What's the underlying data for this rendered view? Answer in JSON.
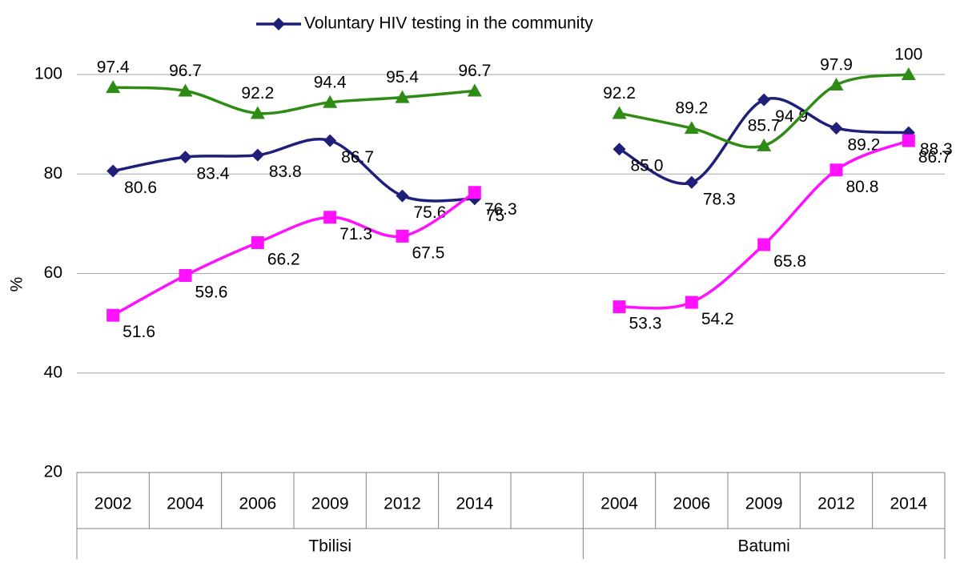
{
  "chart_data": {
    "type": "line",
    "categories": [
      "2002",
      "2004",
      "2006",
      "2009",
      "2012",
      "2014",
      null,
      "2004",
      "2006",
      "2009",
      "2012",
      "2014"
    ],
    "group_labels": [
      "Tbilisi",
      "Batumi"
    ],
    "y_label": "%",
    "ylim": [
      20,
      100
    ],
    "yticks": [
      20,
      40,
      60,
      80,
      100
    ],
    "grid": true,
    "smooth": true,
    "legend": "top",
    "series": [
      {
        "name": "Voluntary HIV testing in the community",
        "color": "#1f1f7a",
        "marker": "diamond",
        "values": [
          80.6,
          83.4,
          83.8,
          86.7,
          75.6,
          75,
          null,
          85.0,
          78.3,
          94.9,
          89.2,
          88.3
        ],
        "value_labels": [
          "80.6",
          "83.4",
          "83.8",
          "86.7",
          "75.6",
          "75",
          null,
          "85.0",
          "78.3",
          "94.9",
          "89.2",
          "88.3"
        ]
      },
      {
        "color": "#2e8b14",
        "marker": "triangle",
        "values": [
          97.4,
          96.7,
          92.2,
          94.4,
          95.4,
          96.7,
          null,
          92.2,
          89.2,
          85.7,
          97.9,
          100
        ]
      },
      {
        "color": "#ff10ff",
        "marker": "square",
        "values": [
          51.6,
          59.6,
          66.2,
          71.3,
          67.5,
          76.3,
          null,
          53.3,
          54.2,
          65.8,
          80.8,
          86.7
        ]
      }
    ]
  }
}
